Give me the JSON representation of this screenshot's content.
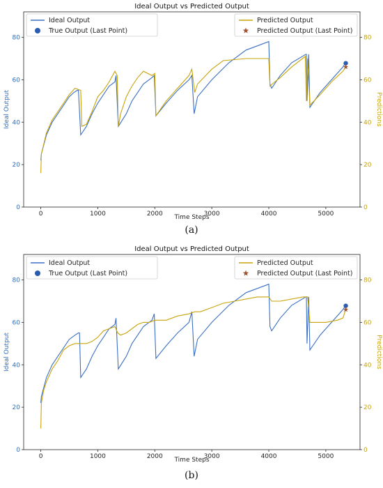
{
  "colors": {
    "ideal": "#3a6fc4",
    "pred": "#c8a40a",
    "true_pt": "#2a5db0",
    "pred_pt": "#a0522d",
    "left_axis": "#2f6fbf",
    "right_axis": "#c8a40a"
  },
  "chart_data": [
    {
      "type": "line",
      "panel_label": "(a)",
      "title": "Ideal Output vs Predicted Output",
      "xlabel": "Time Steps",
      "ylabel": "Ideal Output",
      "y2label": "Predictions",
      "xlim": [
        -300,
        5600
      ],
      "ylim": [
        0,
        92
      ],
      "y2lim": [
        0,
        92
      ],
      "xticks": [
        0,
        1000,
        2000,
        3000,
        4000,
        5000
      ],
      "yticks": [
        0,
        20,
        40,
        60,
        80
      ],
      "y2ticks": [
        0,
        20,
        40,
        60,
        80
      ],
      "legend_left": [
        "Ideal Output",
        "True Output (Last Point)"
      ],
      "legend_right": [
        "Predicted Output",
        "Predicted Output (Last Point)"
      ],
      "legend_placement": [
        "top-left",
        "top-right"
      ],
      "series": [
        {
          "name": "Ideal Output",
          "axis": "left",
          "x": [
            0,
            10,
            100,
            200,
            300,
            400,
            500,
            580,
            640,
            660,
            700,
            800,
            900,
            1000,
            1100,
            1200,
            1300,
            1320,
            1360,
            1500,
            1600,
            1700,
            1800,
            1950,
            1990,
            2020,
            2200,
            2400,
            2600,
            2650,
            2690,
            2750,
            3000,
            3300,
            3600,
            3900,
            4000,
            4020,
            4050,
            4200,
            4400,
            4650,
            4660,
            4670,
            4700,
            4720,
            4900,
            5100,
            5300,
            5350
          ],
          "y": [
            22,
            25,
            34,
            40,
            44,
            48,
            52,
            54,
            55,
            55,
            34,
            38,
            44,
            49,
            53,
            57,
            59,
            62,
            38,
            44,
            50,
            54,
            58,
            61,
            62,
            43,
            49,
            55,
            60,
            62,
            44,
            52,
            60,
            68,
            74,
            77,
            78,
            58,
            56,
            62,
            68,
            72,
            72,
            50,
            72,
            47,
            54,
            60,
            66,
            68
          ]
        },
        {
          "name": "Predicted Output",
          "axis": "right",
          "x": [
            0,
            10,
            100,
            200,
            300,
            400,
            500,
            600,
            700,
            720,
            800,
            900,
            1000,
            1100,
            1200,
            1300,
            1340,
            1360,
            1400,
            1500,
            1600,
            1700,
            1800,
            1950,
            2000,
            2020,
            2200,
            2400,
            2600,
            2650,
            2700,
            2750,
            3000,
            3200,
            3600,
            4000,
            4020,
            4060,
            4200,
            4400,
            4640,
            4660,
            4680,
            4720,
            4900,
            5100,
            5300,
            5350
          ],
          "y": [
            16,
            25,
            35,
            41,
            45,
            49,
            53,
            56,
            55,
            38,
            39,
            45,
            52,
            55,
            59,
            64,
            62,
            38,
            44,
            52,
            57,
            61,
            64,
            62,
            63,
            43,
            50,
            56,
            62,
            65,
            54,
            58,
            65,
            69,
            70,
            70,
            57,
            58,
            61,
            66,
            71,
            50,
            70,
            48,
            53,
            59,
            64,
            66
          ]
        }
      ],
      "markers": [
        {
          "name": "True Output (Last Point)",
          "shape": "circle",
          "x": 5350,
          "y": 67.8,
          "axis": "left"
        },
        {
          "name": "Predicted Output (Last Point)",
          "shape": "star",
          "x": 5350,
          "y": 66,
          "axis": "right"
        }
      ]
    },
    {
      "type": "line",
      "panel_label": "(b)",
      "title": "Ideal Output vs Predicted Output",
      "xlabel": "Time Steps",
      "ylabel": "Ideal Output",
      "y2label": "Predictions",
      "xlim": [
        -300,
        5600
      ],
      "ylim": [
        0,
        92
      ],
      "y2lim": [
        0,
        92
      ],
      "xticks": [
        0,
        1000,
        2000,
        3000,
        4000,
        5000
      ],
      "yticks": [
        0,
        20,
        40,
        60,
        80
      ],
      "y2ticks": [
        0,
        20,
        40,
        60,
        80
      ],
      "legend_left": [
        "Ideal Output",
        "True Output (Last Point)"
      ],
      "legend_right": [
        "Predicted Output",
        "Predicted Output (Last Point)"
      ],
      "legend_placement": [
        "top-left",
        "top-right"
      ],
      "series": [
        {
          "name": "Ideal Output",
          "axis": "left",
          "x": [
            0,
            10,
            100,
            200,
            300,
            400,
            500,
            600,
            660,
            680,
            700,
            800,
            900,
            1000,
            1100,
            1200,
            1300,
            1320,
            1360,
            1500,
            1600,
            1700,
            1800,
            1950,
            1990,
            2020,
            2200,
            2400,
            2600,
            2650,
            2690,
            2750,
            3000,
            3300,
            3600,
            3900,
            4000,
            4020,
            4050,
            4200,
            4400,
            4650,
            4660,
            4670,
            4700,
            4720,
            4900,
            5100,
            5300,
            5350
          ],
          "y": [
            22,
            25,
            34,
            40,
            44,
            48,
            52,
            54,
            55,
            55,
            34,
            38,
            44,
            49,
            53,
            57,
            59,
            62,
            38,
            44,
            50,
            54,
            58,
            61,
            64,
            43,
            49,
            55,
            60,
            65,
            44,
            52,
            60,
            68,
            74,
            77,
            78,
            58,
            56,
            62,
            68,
            72,
            72,
            50,
            72,
            47,
            54,
            60,
            66,
            68
          ]
        },
        {
          "name": "Predicted Output",
          "axis": "right",
          "x": [
            0,
            10,
            50,
            100,
            200,
            300,
            400,
            500,
            600,
            700,
            800,
            900,
            1000,
            1100,
            1200,
            1300,
            1350,
            1400,
            1500,
            1600,
            1700,
            1800,
            1900,
            2000,
            2050,
            2200,
            2400,
            2600,
            2700,
            2800,
            3000,
            3200,
            3400,
            3600,
            3800,
            4000,
            4050,
            4200,
            4400,
            4600,
            4680,
            4700,
            4720,
            4800,
            5000,
            5200,
            5300,
            5350
          ],
          "y": [
            10,
            22,
            28,
            32,
            38,
            42,
            47,
            49,
            50,
            50,
            50,
            51,
            53,
            56,
            57,
            58,
            55,
            54,
            55,
            57,
            59,
            60,
            60,
            61,
            61,
            61,
            63,
            64,
            65,
            65,
            67,
            69,
            70,
            71,
            72,
            72,
            70,
            70,
            71,
            72,
            72,
            67,
            60,
            60,
            60,
            61,
            62,
            66
          ]
        }
      ],
      "markers": [
        {
          "name": "True Output (Last Point)",
          "shape": "circle",
          "x": 5350,
          "y": 67.8,
          "axis": "left"
        },
        {
          "name": "Predicted Output (Last Point)",
          "shape": "star",
          "x": 5350,
          "y": 66,
          "axis": "right"
        }
      ]
    }
  ]
}
